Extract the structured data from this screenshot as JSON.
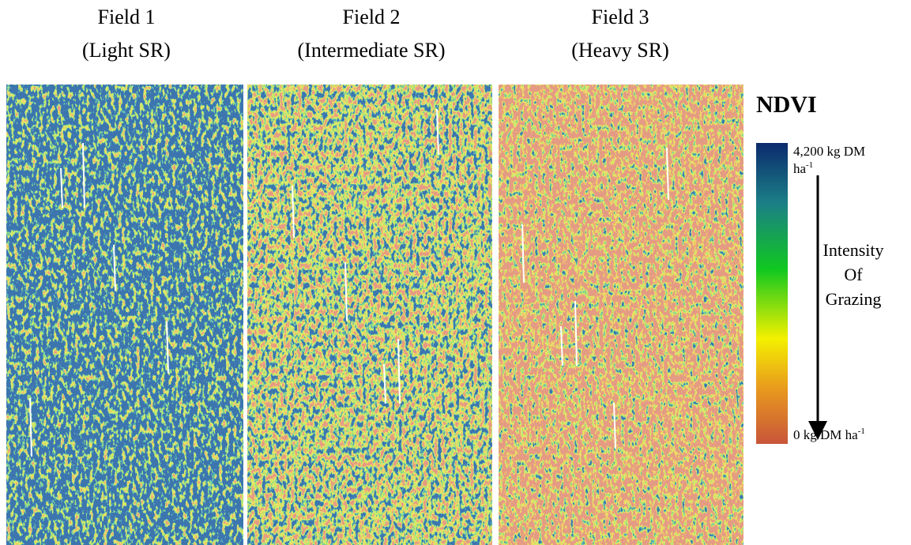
{
  "fields": [
    {
      "name": "Field 1",
      "stocking": "(Light SR)"
    },
    {
      "name": "Field 2",
      "stocking": "(Intermediate SR)"
    },
    {
      "name": "Field 3",
      "stocking": "(Heavy SR)"
    }
  ],
  "legend": {
    "title": "NDVI",
    "max_label": {
      "line1": "4,200 kg DM",
      "line2": "ha",
      "sup": "-1"
    },
    "min_label": {
      "text": "0 kg DM ha",
      "sup": "-1"
    },
    "arrow_label": [
      "Intensity",
      "Of",
      "Grazing"
    ]
  }
}
